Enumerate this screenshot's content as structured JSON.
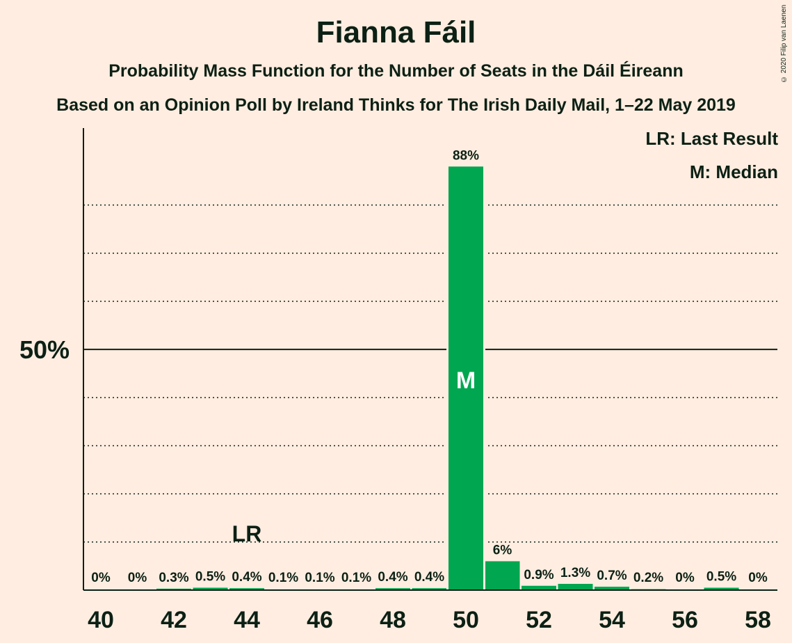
{
  "title": "Fianna Fáil",
  "subtitle1": "Probability Mass Function for the Number of Seats in the Dáil Éireann",
  "subtitle2": "Based on an Opinion Poll by Ireland Thinks for The Irish Daily Mail, 1–22 May 2019",
  "copyright": "© 2020 Filip van Laenen",
  "legend": {
    "last_result": "LR: Last Result",
    "median": "M: Median"
  },
  "colors": {
    "bar": "#00A650",
    "background": "#FFEDE1",
    "text": "#0D2014"
  },
  "chart_data": {
    "type": "bar",
    "categories": [
      40,
      41,
      42,
      43,
      44,
      45,
      46,
      47,
      48,
      49,
      50,
      51,
      52,
      53,
      54,
      55,
      56,
      57,
      58
    ],
    "values": [
      0,
      0,
      0.3,
      0.5,
      0.4,
      0.1,
      0.1,
      0.1,
      0.4,
      0.4,
      88,
      6,
      0.9,
      1.3,
      0.7,
      0.2,
      0,
      0.5,
      0
    ],
    "labels": [
      "0%",
      "0%",
      "0.3%",
      "0.5%",
      "0.4%",
      "0.1%",
      "0.1%",
      "0.1%",
      "0.4%",
      "0.4%",
      "88%",
      "6%",
      "0.9%",
      "1.3%",
      "0.7%",
      "0.2%",
      "0%",
      "0.5%",
      "0%"
    ],
    "x_tick_labels": [
      "40",
      "42",
      "44",
      "46",
      "48",
      "50",
      "52",
      "54",
      "56",
      "58"
    ],
    "y_tick_label": "50%",
    "ylim": [
      0,
      96
    ],
    "gridlines": [
      10,
      20,
      30,
      40,
      60,
      70,
      80
    ],
    "solid_line": 50,
    "median_seat": 50,
    "median_mark": "M",
    "last_result_seat": 44,
    "last_result_mark": "LR"
  }
}
